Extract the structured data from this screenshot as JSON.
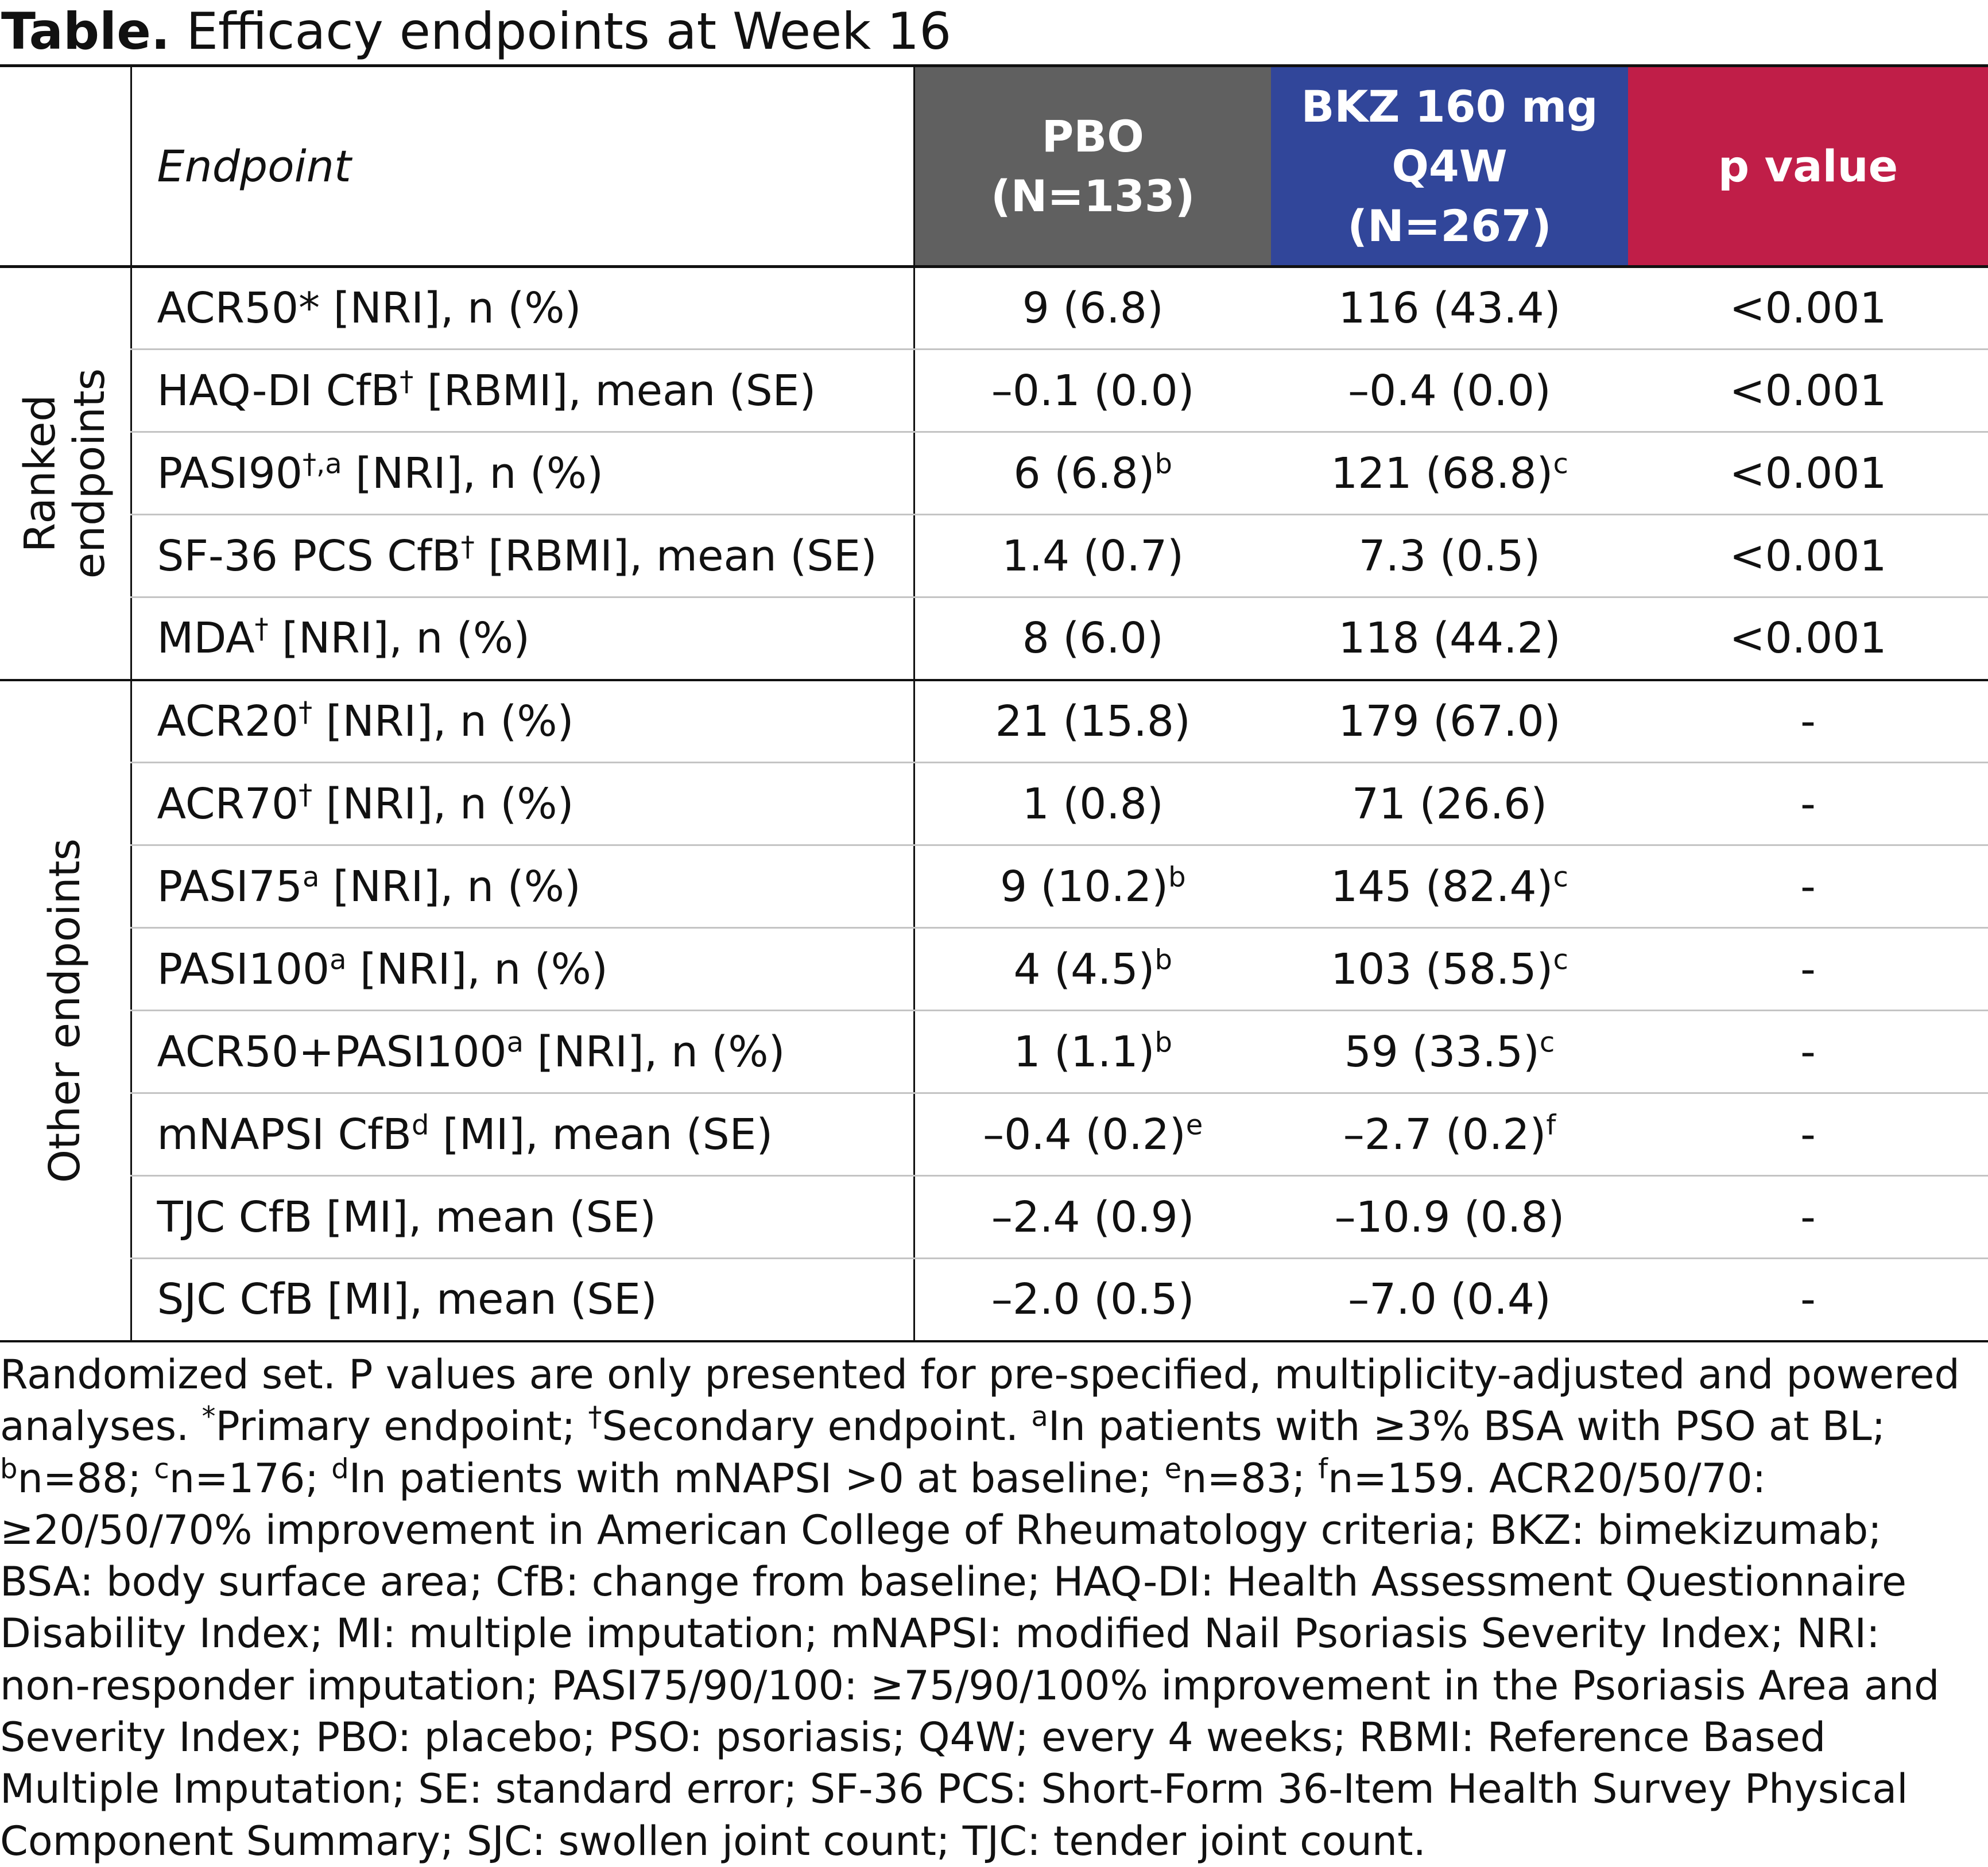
{
  "title": {
    "bold": "Table.",
    "text": " Efficacy endpoints at Week 16"
  },
  "header": {
    "endpoint": "Endpoint",
    "pbo": [
      "PBO",
      "(N=133)"
    ],
    "bkz": [
      "BKZ 160 mg",
      "Q4W",
      "(N=267)"
    ],
    "pvalue": "p value"
  },
  "groups": {
    "ranked": [
      "Ranked",
      "endpoints"
    ],
    "other": "Other endpoints"
  },
  "rows": [
    {
      "label": "ACR50* [NRI], n (%)",
      "label_main": "ACR50*",
      "label_sup": "",
      "label_rest": " [NRI], n (%)",
      "pbo": "9 (6.8)",
      "pbo_sup": "",
      "bkz": "116 (43.4)",
      "bkz_sup": "",
      "p": "<0.001"
    },
    {
      "label_main": "HAQ-DI CfB",
      "label_sup": "†",
      "label_rest": " [RBMI], mean (SE)",
      "pbo": "–0.1 (0.0)",
      "pbo_sup": "",
      "bkz": "–0.4 (0.0)",
      "bkz_sup": "",
      "p": "<0.001"
    },
    {
      "label_main": "PASI90",
      "label_sup": "†,a",
      "label_rest": " [NRI], n (%)",
      "pbo": "6 (6.8)",
      "pbo_sup": "b",
      "bkz": "121 (68.8)",
      "bkz_sup": "c",
      "p": "<0.001"
    },
    {
      "label_main": "SF-36 PCS CfB",
      "label_sup": "†",
      "label_rest": " [RBMI], mean (SE)",
      "pbo": "1.4 (0.7)",
      "pbo_sup": "",
      "bkz": "7.3 (0.5)",
      "bkz_sup": "",
      "p": "<0.001"
    },
    {
      "label_main": "MDA",
      "label_sup": "†",
      "label_rest": " [NRI], n (%)",
      "pbo": "8 (6.0)",
      "pbo_sup": "",
      "bkz": "118 (44.2)",
      "bkz_sup": "",
      "p": "<0.001"
    },
    {
      "label_main": "ACR20",
      "label_sup": "†",
      "label_rest": " [NRI], n (%)",
      "pbo": "21 (15.8)",
      "pbo_sup": "",
      "bkz": "179 (67.0)",
      "bkz_sup": "",
      "p": "-"
    },
    {
      "label_main": "ACR70",
      "label_sup": "†",
      "label_rest": " [NRI], n (%)",
      "pbo": "1 (0.8)",
      "pbo_sup": "",
      "bkz": "71 (26.6)",
      "bkz_sup": "",
      "p": "-"
    },
    {
      "label_main": "PASI75",
      "label_sup": "a",
      "label_rest": " [NRI], n (%)",
      "pbo": "9 (10.2)",
      "pbo_sup": "b",
      "bkz": "145 (82.4)",
      "bkz_sup": "c",
      "p": "-"
    },
    {
      "label_main": "PASI100",
      "label_sup": "a",
      "label_rest": " [NRI], n (%)",
      "pbo": "4 (4.5)",
      "pbo_sup": "b",
      "bkz": "103 (58.5)",
      "bkz_sup": "c",
      "p": "-"
    },
    {
      "label_main": "ACR50+PASI100",
      "label_sup": "a",
      "label_rest": " [NRI], n (%)",
      "pbo": "1 (1.1)",
      "pbo_sup": "b",
      "bkz": "59 (33.5)",
      "bkz_sup": "c",
      "p": "-"
    },
    {
      "label_main": "mNAPSI CfB",
      "label_sup": "d",
      "label_rest": " [MI], mean (SE)",
      "pbo": "–0.4 (0.2)",
      "pbo_sup": "e",
      "bkz": "–2.7 (0.2)",
      "bkz_sup": "f",
      "p": "-"
    },
    {
      "label_main": "TJC CfB [MI], mean (SE)",
      "label_sup": "",
      "label_rest": "",
      "pbo": "–2.4 (0.9)",
      "pbo_sup": "",
      "bkz": "–10.9 (0.8)",
      "bkz_sup": "",
      "p": "-"
    },
    {
      "label_main": "SJC CfB [MI], mean (SE)",
      "label_sup": "",
      "label_rest": "",
      "pbo": "–2.0 (0.5)",
      "pbo_sup": "",
      "bkz": "–7.0 (0.4)",
      "bkz_sup": "",
      "p": "-"
    }
  ],
  "footnote": {
    "t1": "Randomized set. P values are only presented for pre-specified, multiplicity-adjusted and powered analyses. ",
    "s1": "*",
    "t2": "Primary endpoint; ",
    "s2": "†",
    "t3": "Secondary endpoint. ",
    "s3": "a",
    "t4": "In patients with ≥3% BSA with PSO at BL; ",
    "s4": "b",
    "t5": "n=88; ",
    "s5": "c",
    "t6": "n=176; ",
    "s6": "d",
    "t7": "In patients with mNAPSI >0 at baseline; ",
    "s7": "e",
    "t8": "n=83; ",
    "s8": "f",
    "t9": "n=159. ACR20/50/70: ≥20/50/70% improvement in American College of Rheumatology criteria; BKZ: bimekizumab; BSA: body surface area; CfB: change from baseline; HAQ-DI: Health Assessment Questionnaire Disability Index; MI: multiple imputation; mNAPSI: modified Nail Psoriasis Severity Index; NRI: non-responder imputation; PASI75/90/100: ≥75/90/100% improvement in the Psoriasis Area and Severity Index; PBO: placebo; PSO: psoriasis; Q4W; every 4 weeks; RBMI: Reference Based Multiple Imputation; SE: standard error; SF-36 PCS: Short-Form 36-Item Health Survey Physical Component Summary; SJC: swollen joint count; TJC: tender joint count."
  }
}
